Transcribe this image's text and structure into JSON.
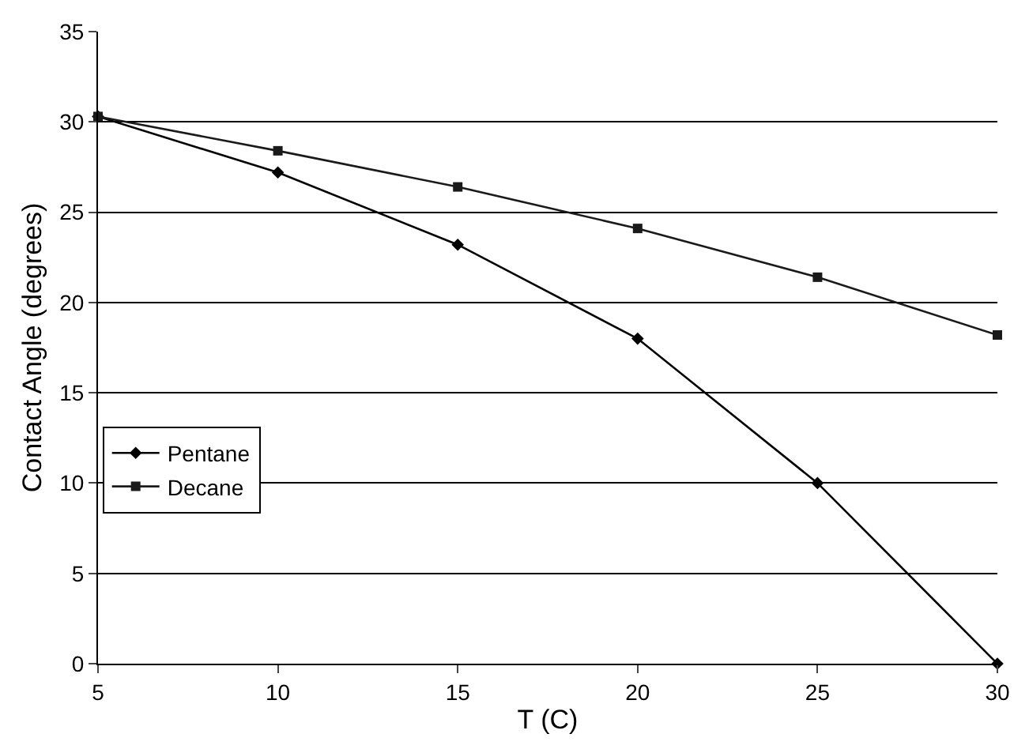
{
  "chart_data": {
    "type": "line",
    "xlabel": "T (C)",
    "ylabel": "Contact Angle (degrees)",
    "x": [
      5,
      10,
      15,
      20,
      25,
      30
    ],
    "series": [
      {
        "name": "Pentane",
        "color": "#000000",
        "marker": "diamond",
        "values": [
          30.3,
          27.2,
          23.2,
          18.0,
          10.0,
          0.0
        ]
      },
      {
        "name": "Decane",
        "color": "#1a1a1a",
        "marker": "square",
        "values": [
          30.3,
          28.4,
          26.4,
          24.1,
          21.4,
          18.2
        ]
      }
    ],
    "xlim": [
      5,
      30
    ],
    "xticks": [
      5,
      10,
      15,
      20,
      25,
      30
    ],
    "ylim": [
      0,
      35
    ],
    "yticks": [
      0,
      5,
      10,
      15,
      20,
      25,
      30,
      35
    ],
    "grid": "y",
    "legend": "left",
    "line_style": "solid"
  }
}
